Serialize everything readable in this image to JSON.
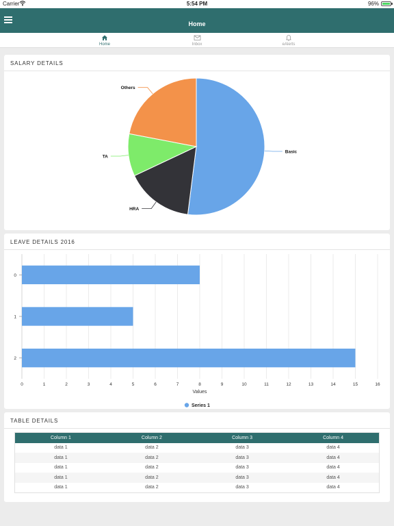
{
  "status_bar": {
    "carrier": "Carrier",
    "time": "5:54 PM",
    "battery": "96%"
  },
  "nav": {
    "title": "Home",
    "menu_icon": "hamburger-menu-icon"
  },
  "tabs": [
    {
      "label": "Home",
      "icon": "home-icon",
      "active": true
    },
    {
      "label": "Inbox",
      "icon": "envelope-icon",
      "active": false
    },
    {
      "label": "eAlerts",
      "icon": "bell-icon",
      "active": false
    }
  ],
  "salary": {
    "header": "SALARY DETAILS",
    "chart_data": {
      "type": "pie",
      "slices": [
        {
          "label": "Basic",
          "value": 52,
          "color": "#68a5e8"
        },
        {
          "label": "HRA",
          "value": 16,
          "color": "#333338"
        },
        {
          "label": "TA",
          "value": 10,
          "color": "#7eeb6a"
        },
        {
          "label": "Others",
          "value": 22,
          "color": "#f3924a"
        }
      ]
    }
  },
  "leave": {
    "header": "LEAVE DETAILS 2016",
    "chart_data": {
      "type": "bar",
      "orientation": "horizontal",
      "categories": [
        "0",
        "1",
        "2"
      ],
      "series": [
        {
          "name": "Series 1",
          "values": [
            8,
            5,
            15
          ],
          "color": "#68a5e8"
        }
      ],
      "xlabel": "Values",
      "xlim": [
        0,
        16
      ],
      "x_ticks": [
        "0",
        "1",
        "2",
        "3",
        "4",
        "5",
        "6",
        "7",
        "8",
        "9",
        "10",
        "11",
        "12",
        "13",
        "14",
        "15",
        "16"
      ],
      "grid": true,
      "legend": "bottom-center"
    }
  },
  "table": {
    "header": "TABLE DETAILS",
    "columns": [
      "Column 1",
      "Column 2",
      "Column 3",
      "Column 4"
    ],
    "rows": [
      [
        "data 1",
        "data 2",
        "data 3",
        "data 4"
      ],
      [
        "data 1",
        "data 2",
        "data 3",
        "data 4"
      ],
      [
        "data 1",
        "data 2",
        "data 3",
        "data 4"
      ],
      [
        "data 1",
        "data 2",
        "data 3",
        "data 4"
      ],
      [
        "data 1",
        "data 2",
        "data 3",
        "data 4"
      ]
    ]
  }
}
